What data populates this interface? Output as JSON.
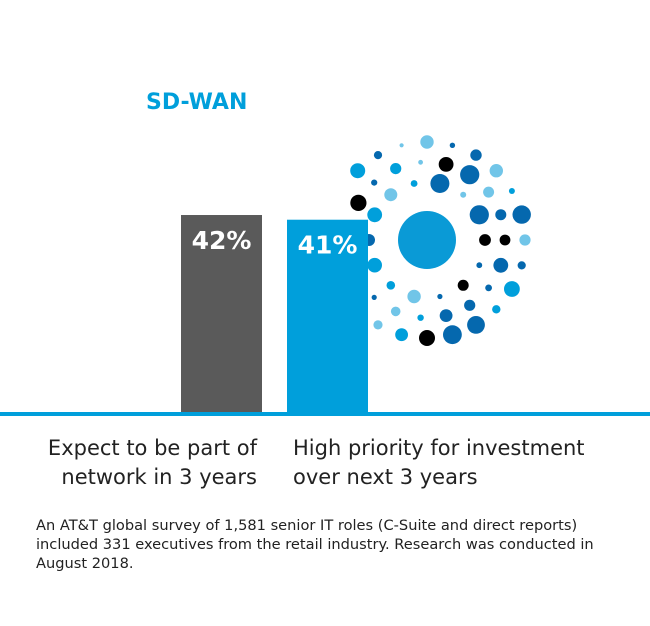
{
  "chart_data": {
    "type": "bar",
    "title": "SD-WAN",
    "categories": [
      "Expect to be part of\nnetwork in 3 years",
      "High priority for investment\nover next 3 years"
    ],
    "values": [
      42,
      41
    ],
    "value_labels": [
      "42%",
      "41%"
    ],
    "colors": [
      "#5a5a5a",
      "#009fdb"
    ],
    "footnote": "An AT&T global survey of 1,581 senior IT roles (C-Suite and direct reports) included 331 executives from the retail industry. Research was conducted in August 2018."
  }
}
